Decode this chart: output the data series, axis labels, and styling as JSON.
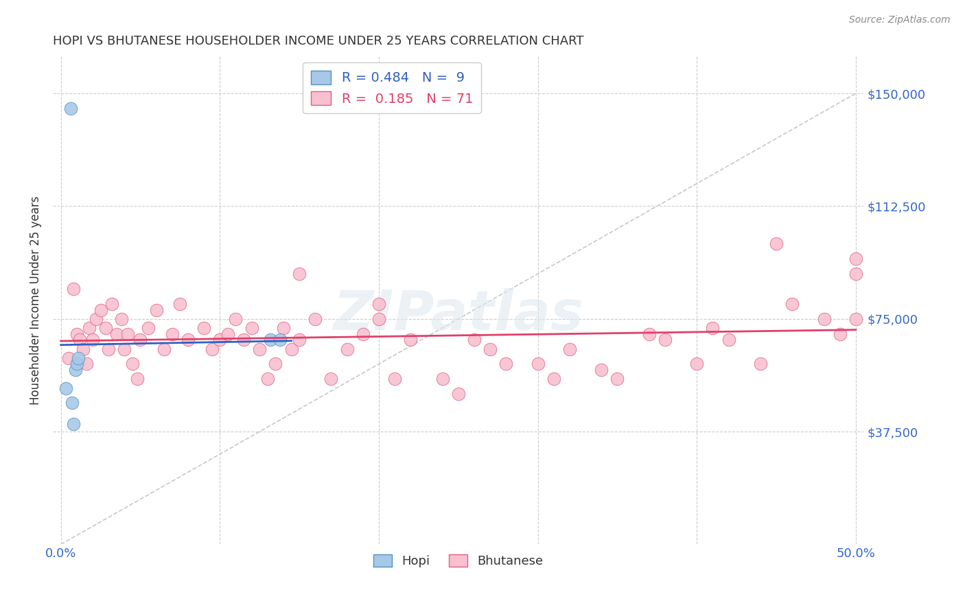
{
  "title": "HOPI VS BHUTANESE HOUSEHOLDER INCOME UNDER 25 YEARS CORRELATION CHART",
  "source": "Source: ZipAtlas.com",
  "ylabel": "Householder Income Under 25 years",
  "hopi_R": 0.484,
  "hopi_N": 9,
  "bhutanese_R": 0.185,
  "bhutanese_N": 71,
  "xlim": [
    -0.005,
    0.505
  ],
  "ylim": [
    0,
    162500
  ],
  "yticks": [
    0,
    37500,
    75000,
    112500,
    150000
  ],
  "xticks": [
    0.0,
    0.1,
    0.2,
    0.3,
    0.4,
    0.5
  ],
  "hopi_color": "#a8c8e8",
  "hopi_edge_color": "#5090c0",
  "bhutanese_color": "#f8c0d0",
  "bhutanese_edge_color": "#e06080",
  "hopi_line_color": "#3060c0",
  "bhutanese_line_color": "#e0406a",
  "ref_line_color": "#c8c8c8",
  "grid_color": "#cccccc",
  "axis_label_color": "#3366cc",
  "title_color": "#333333",
  "watermark": "ZIPatlas",
  "hopi_x": [
    0.003,
    0.006,
    0.007,
    0.008,
    0.009,
    0.01,
    0.011,
    0.132,
    0.138
  ],
  "hopi_y": [
    52000,
    145000,
    47000,
    40000,
    58000,
    60000,
    62000,
    68000,
    68000
  ],
  "bhutanese_x": [
    0.005,
    0.008,
    0.01,
    0.012,
    0.014,
    0.016,
    0.018,
    0.02,
    0.022,
    0.025,
    0.028,
    0.03,
    0.032,
    0.035,
    0.038,
    0.04,
    0.042,
    0.045,
    0.048,
    0.05,
    0.055,
    0.06,
    0.065,
    0.07,
    0.075,
    0.08,
    0.09,
    0.095,
    0.1,
    0.105,
    0.11,
    0.115,
    0.12,
    0.125,
    0.13,
    0.135,
    0.14,
    0.145,
    0.15,
    0.16,
    0.17,
    0.18,
    0.19,
    0.2,
    0.21,
    0.22,
    0.24,
    0.25,
    0.26,
    0.27,
    0.28,
    0.3,
    0.31,
    0.32,
    0.34,
    0.35,
    0.37,
    0.38,
    0.4,
    0.41,
    0.42,
    0.44,
    0.45,
    0.46,
    0.48,
    0.49,
    0.5,
    0.5,
    0.5,
    0.15,
    0.2
  ],
  "bhutanese_y": [
    62000,
    85000,
    70000,
    68000,
    65000,
    60000,
    72000,
    68000,
    75000,
    78000,
    72000,
    65000,
    80000,
    70000,
    75000,
    65000,
    70000,
    60000,
    55000,
    68000,
    72000,
    78000,
    65000,
    70000,
    80000,
    68000,
    72000,
    65000,
    68000,
    70000,
    75000,
    68000,
    72000,
    65000,
    55000,
    60000,
    72000,
    65000,
    68000,
    75000,
    55000,
    65000,
    70000,
    75000,
    55000,
    68000,
    55000,
    50000,
    68000,
    65000,
    60000,
    60000,
    55000,
    65000,
    58000,
    55000,
    70000,
    68000,
    60000,
    72000,
    68000,
    60000,
    100000,
    80000,
    75000,
    70000,
    90000,
    95000,
    75000,
    90000,
    80000
  ]
}
